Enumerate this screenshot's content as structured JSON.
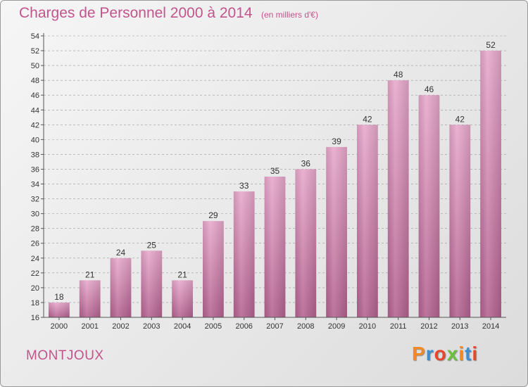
{
  "header": {
    "title": "Charges de Personnel 2000 à 2014",
    "subtitle": "(en milliers d'€)"
  },
  "footer": {
    "place": "MONTJOUX",
    "logo": "Proxiti",
    "logo_colors": [
      "#f08a24",
      "#3a8fd4",
      "#e8452c",
      "#6cbf3c",
      "#f08a24",
      "#3a8fd4",
      "#e8452c"
    ]
  },
  "colors": {
    "title": "#c2548c",
    "bar_top": "#e8a8cc",
    "bar_bottom": "#b46290",
    "grid": "#9a9a9a"
  },
  "chart_data": {
    "type": "bar",
    "title": "Charges de Personnel 2000 à 2014",
    "subtitle": "(en milliers d'€)",
    "categories": [
      "2000",
      "2001",
      "2002",
      "2003",
      "2004",
      "2005",
      "2006",
      "2007",
      "2008",
      "2009",
      "2010",
      "2011",
      "2012",
      "2013",
      "2014"
    ],
    "values": [
      18,
      21,
      24,
      25,
      21,
      29,
      33,
      35,
      36,
      39,
      42,
      48,
      46,
      42,
      52
    ],
    "ylim": [
      16,
      54
    ],
    "yticks": [
      16,
      18,
      20,
      22,
      24,
      26,
      28,
      30,
      32,
      34,
      36,
      38,
      40,
      42,
      44,
      46,
      48,
      50,
      52,
      54
    ],
    "grid": "horizontal dashed",
    "legend": "none"
  }
}
